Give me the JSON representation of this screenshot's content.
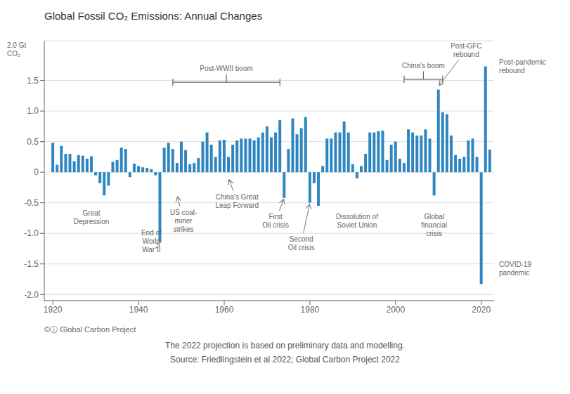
{
  "chart_data": {
    "type": "bar",
    "title": "Global Fossil CO₂ Emissions: Annual Changes",
    "ylabel": "2.0 Gt\nCO₂",
    "x": [
      1920,
      1921,
      1922,
      1923,
      1924,
      1925,
      1926,
      1927,
      1928,
      1929,
      1930,
      1931,
      1932,
      1933,
      1934,
      1935,
      1936,
      1937,
      1938,
      1939,
      1940,
      1941,
      1942,
      1943,
      1944,
      1945,
      1946,
      1947,
      1948,
      1949,
      1950,
      1951,
      1952,
      1953,
      1954,
      1955,
      1956,
      1957,
      1958,
      1959,
      1960,
      1961,
      1962,
      1963,
      1964,
      1965,
      1966,
      1967,
      1968,
      1969,
      1970,
      1971,
      1972,
      1973,
      1974,
      1975,
      1976,
      1977,
      1978,
      1979,
      1980,
      1981,
      1982,
      1983,
      1984,
      1985,
      1986,
      1987,
      1988,
      1989,
      1990,
      1991,
      1992,
      1993,
      1994,
      1995,
      1996,
      1997,
      1998,
      1999,
      2000,
      2001,
      2002,
      2003,
      2004,
      2005,
      2006,
      2007,
      2008,
      2009,
      2010,
      2011,
      2012,
      2013,
      2014,
      2015,
      2016,
      2017,
      2018,
      2019,
      2020,
      2021,
      2022
    ],
    "values": [
      0.48,
      0.12,
      0.43,
      0.3,
      0.3,
      0.18,
      0.28,
      0.27,
      0.22,
      0.26,
      -0.05,
      -0.18,
      -0.38,
      -0.22,
      0.17,
      0.2,
      0.4,
      0.38,
      -0.08,
      0.14,
      0.1,
      0.08,
      0.07,
      0.05,
      -0.05,
      -1.15,
      0.4,
      0.48,
      0.38,
      0.15,
      0.5,
      0.36,
      0.13,
      0.15,
      0.23,
      0.5,
      0.65,
      0.45,
      0.25,
      0.52,
      0.53,
      0.25,
      0.45,
      0.52,
      0.55,
      0.55,
      0.55,
      0.52,
      0.57,
      0.65,
      0.75,
      0.57,
      0.65,
      0.85,
      -0.42,
      0.38,
      0.88,
      0.62,
      0.72,
      0.9,
      -0.5,
      -0.18,
      -0.55,
      0.1,
      0.55,
      0.55,
      0.65,
      0.65,
      0.83,
      0.65,
      0.13,
      -0.1,
      0.1,
      0.3,
      0.65,
      0.65,
      0.67,
      0.68,
      0.2,
      0.45,
      0.5,
      0.22,
      0.15,
      0.7,
      0.65,
      0.6,
      0.6,
      0.7,
      0.55,
      -0.38,
      1.35,
      0.98,
      0.95,
      0.6,
      0.28,
      0.22,
      0.25,
      0.52,
      0.55,
      0.25,
      -1.83,
      1.73,
      0.37
    ],
    "color": "#2E86C1",
    "xlim": [
      1918,
      2023
    ],
    "xticks": [
      1920,
      1940,
      1960,
      1980,
      2000,
      2020
    ],
    "ylim": [
      -2.1,
      2.15
    ],
    "yticks": [
      {
        "value": -2.0,
        "label": "-2.0"
      },
      -1.5,
      {
        "value": -1.0,
        "label": "-1.0"
      },
      -0.5,
      0,
      0.5,
      {
        "value": 1.0,
        "label": "1.0"
      },
      1.5
    ],
    "grid": true,
    "annotations": [
      "Great\nDepression",
      "End of\nWorld\nWar II",
      "US coal-\nminer\nstrikes",
      "China's Great\nLeap Forward",
      "First\nOil crisis",
      "Second\nOil crisis",
      "Dissolution of\nSoviet Union",
      "Global\nfinancial\ncrisis",
      "Post-WWII boom",
      "China's boom",
      "Post-GFC\nrebound",
      "Post-pandemic\nrebound",
      "COVID-19\npandemic",
      "©ⓘ Global Carbon Project",
      "The 2022 projection is based on preliminary data and modelling.",
      "Source:  Friedlingstein et al 2022;  Global Carbon Project 2022"
    ]
  }
}
